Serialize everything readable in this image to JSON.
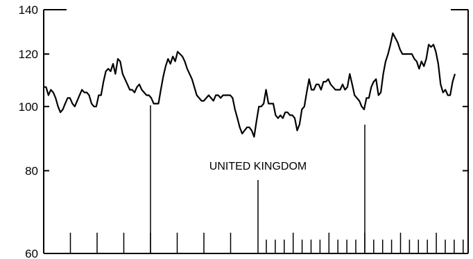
{
  "chart_data": {
    "type": "line",
    "title": "",
    "xlabel": "",
    "ylabel": "",
    "scale": "log",
    "ylim": [
      60,
      140
    ],
    "yticks": [
      60,
      80,
      100,
      120,
      140
    ],
    "ytick_labels": [
      "60",
      "80",
      "100",
      "120",
      "140"
    ],
    "annotations": [
      "UNITED KINGDOM"
    ],
    "series": [
      {
        "values": [
          107,
          107,
          104,
          106,
          105,
          103,
          100,
          98,
          99,
          101,
          103,
          103,
          101,
          100,
          102,
          104,
          106,
          105,
          105,
          104,
          101,
          100,
          100,
          104,
          104,
          109,
          113,
          114,
          113,
          116,
          112,
          118,
          117,
          112,
          110,
          108,
          106,
          106,
          105,
          107,
          108,
          106,
          105,
          104,
          104,
          103,
          101,
          101,
          101,
          106,
          111,
          115,
          118,
          116,
          119,
          117,
          121,
          120,
          119,
          117,
          114,
          112,
          110,
          107,
          104,
          103,
          102,
          102,
          103,
          104,
          103,
          102,
          104,
          104,
          103,
          104,
          104,
          104,
          104,
          103,
          99,
          96,
          93,
          91,
          92,
          93,
          93,
          92,
          90,
          95,
          100,
          100,
          101,
          106,
          101,
          101,
          101,
          97,
          96,
          97,
          96,
          98,
          98,
          97,
          97,
          96,
          92,
          94,
          99,
          100,
          105,
          110,
          106,
          106,
          108,
          108,
          106,
          109,
          109,
          110,
          108,
          107,
          106,
          106,
          106,
          108,
          106,
          107,
          112,
          108,
          104,
          103,
          102,
          100,
          99,
          103,
          103,
          107,
          109,
          110,
          104,
          105,
          112,
          117,
          120,
          124,
          129,
          127,
          125,
          122,
          120,
          120,
          120,
          120,
          120,
          118,
          117,
          114,
          117,
          115,
          118,
          124,
          123,
          124,
          121,
          116,
          108,
          105,
          106,
          104,
          104,
          109,
          112
        ]
      }
    ],
    "grid": false,
    "x_tick_marks": "yearly ticks on left half, quarterly ticks on right half, three taller period dividers"
  }
}
